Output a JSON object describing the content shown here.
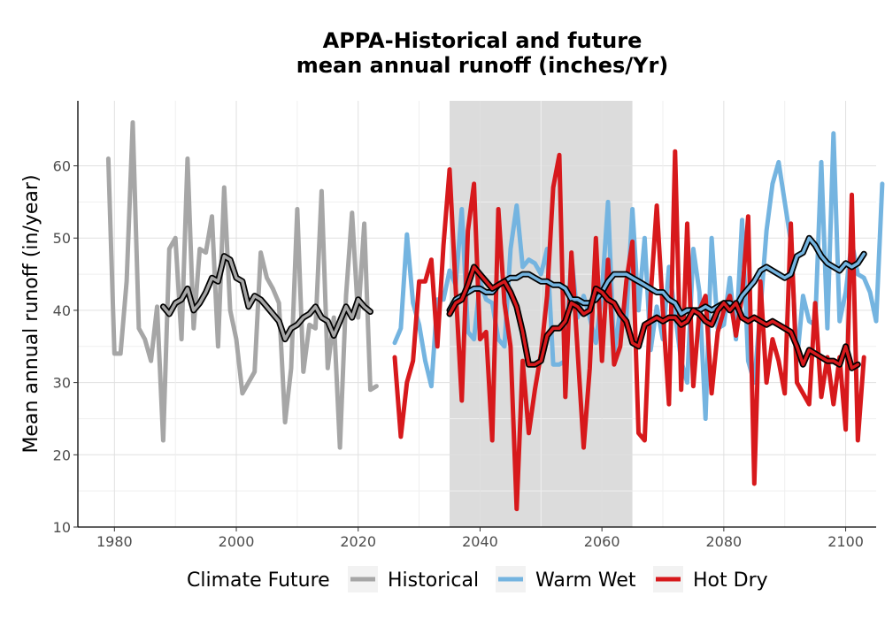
{
  "chart_data": {
    "type": "line",
    "title": [
      "APPA-Historical and future",
      "mean annual runoff (inches/Yr)"
    ],
    "xlabel": "",
    "ylabel": "Mean annual runoff (in/year)",
    "xlim": [
      1974,
      2105
    ],
    "ylim": [
      10,
      69
    ],
    "x_ticks": [
      "1980",
      "2000",
      "2020",
      "2040",
      "2060",
      "2080",
      "2100"
    ],
    "y_ticks": [
      "10",
      "20",
      "30",
      "40",
      "50",
      "60"
    ],
    "x_tick_values": [
      1980,
      2000,
      2020,
      2040,
      2060,
      2080,
      2100
    ],
    "y_tick_values": [
      10,
      20,
      30,
      40,
      50,
      60
    ],
    "shaded_period": [
      2035,
      2065
    ],
    "grid": true,
    "legend": {
      "title": "Climate Future",
      "position": "bottom",
      "entries": [
        "Historical",
        "Warm Wet",
        "Hot Dry"
      ]
    },
    "colors": {
      "Historical": "#a6a6a6",
      "Warm Wet": "#74b4e0",
      "Hot Dry": "#d7191c",
      "rolling_mean": "#000000",
      "shade": "#dcdcdc"
    },
    "series": [
      {
        "name": "Historical",
        "x_start": 1979,
        "values": [
          61,
          34,
          34,
          44,
          66,
          37.5,
          36,
          33,
          40.5,
          22,
          48.5,
          50,
          36,
          61,
          37.5,
          48.5,
          48,
          53,
          35,
          57,
          40,
          36,
          28.5,
          30,
          31.5,
          48,
          44.5,
          43,
          41,
          24.5,
          32,
          54,
          31.5,
          38,
          37.5,
          56.5,
          32,
          39,
          21,
          42,
          53.5,
          39,
          52,
          29,
          29.5
        ]
      },
      {
        "name": "Warm Wet",
        "x_start": 2026,
        "values": [
          35.5,
          37.5,
          50.5,
          41,
          38,
          33,
          29.5,
          41.5,
          41.5,
          45.5,
          43.5,
          54,
          37,
          36,
          44,
          41.5,
          41,
          36,
          35,
          48.5,
          54.5,
          46,
          47,
          46.5,
          45,
          48.5,
          32.5,
          32.5,
          33,
          47.5,
          39,
          42,
          39,
          35.5,
          42.5,
          55,
          34,
          40,
          39,
          54,
          40,
          50,
          34.5,
          40.5,
          36,
          46,
          39.5,
          33,
          30,
          48.5,
          42.5,
          25,
          50,
          37.5,
          38,
          44.5,
          36,
          52.5,
          33,
          30,
          40,
          51,
          57.5,
          60.5,
          55,
          49.5,
          33,
          42,
          38.5,
          38,
          60.5,
          37.5,
          64.5,
          38.5,
          42.5,
          49.5,
          45,
          44.5,
          42.5,
          38.5,
          57.5
        ]
      },
      {
        "name": "Hot Dry",
        "x_start": 2026,
        "values": [
          33.5,
          22.5,
          30,
          33,
          44,
          44,
          47,
          35,
          49,
          59.5,
          43,
          27.5,
          51,
          57.5,
          36,
          37,
          22,
          54,
          41,
          35,
          12.5,
          33,
          23,
          29,
          34,
          42,
          57,
          61.5,
          28,
          48,
          34.5,
          21,
          32,
          50,
          33,
          47,
          32.5,
          35,
          44,
          49.5,
          23,
          22,
          42,
          54.5,
          40,
          27,
          62,
          29,
          52,
          29.5,
          40,
          42,
          28.5,
          37,
          40,
          42,
          36.5,
          42,
          53,
          16,
          44,
          30,
          36,
          33,
          28.5,
          52,
          30,
          28.5,
          27,
          41,
          28,
          33.5,
          27,
          33.5,
          23.5,
          56,
          22,
          33.5
        ]
      },
      {
        "name": "Historical rolling mean",
        "x_start": 1988,
        "values": [
          40.5,
          39.5,
          41,
          41.5,
          43,
          40,
          41,
          42.5,
          44.5,
          44,
          47.5,
          47,
          44.5,
          44,
          40.5,
          42,
          41.5,
          40.5,
          39.5,
          38.5,
          36,
          37.5,
          38,
          39,
          39.5,
          40.5,
          39,
          38.5,
          36.5,
          38.5,
          40.5,
          39,
          41.5,
          40.5,
          39.8
        ]
      },
      {
        "name": "Warm Wet rolling mean",
        "x_start": 2035,
        "values": [
          40,
          41.5,
          42,
          42.5,
          43,
          43,
          42.5,
          42.5,
          43.5,
          44,
          44.5,
          44.5,
          45,
          45,
          44.5,
          44,
          44,
          43.5,
          43.5,
          43,
          41.5,
          41.5,
          41,
          41,
          41.5,
          42.5,
          44,
          45,
          45,
          45,
          44.5,
          44,
          43.5,
          43,
          42.5,
          42.5,
          41.5,
          41,
          39.5,
          40,
          40,
          40,
          40.5,
          40,
          40.5,
          41,
          41,
          40.5,
          42,
          43,
          44,
          45.5,
          46,
          45.5,
          45,
          44.5,
          45,
          47.5,
          48,
          50,
          49,
          47.5,
          46.5,
          46,
          45.5,
          46.5,
          46,
          46.5,
          47.8
        ]
      },
      {
        "name": "Hot Dry rolling mean",
        "x_start": 2035,
        "values": [
          39.5,
          41,
          41.5,
          43.5,
          46,
          45,
          44,
          43,
          43.5,
          44,
          42.5,
          40.5,
          37,
          32.5,
          32.5,
          33,
          36.5,
          37.5,
          37.5,
          38.5,
          41,
          40.5,
          39.5,
          40,
          43,
          42.5,
          41.5,
          41,
          39.5,
          38.5,
          35.5,
          35,
          38,
          38.5,
          39,
          38.5,
          39,
          39,
          38,
          38.5,
          40,
          39.5,
          38.5,
          38,
          40,
          41,
          40,
          41,
          39,
          38.5,
          39,
          38.5,
          38,
          38.5,
          38,
          37.5,
          37,
          35,
          32.5,
          34.5,
          34,
          33.5,
          33,
          33,
          32.5,
          35,
          32,
          32.5
        ]
      }
    ]
  }
}
